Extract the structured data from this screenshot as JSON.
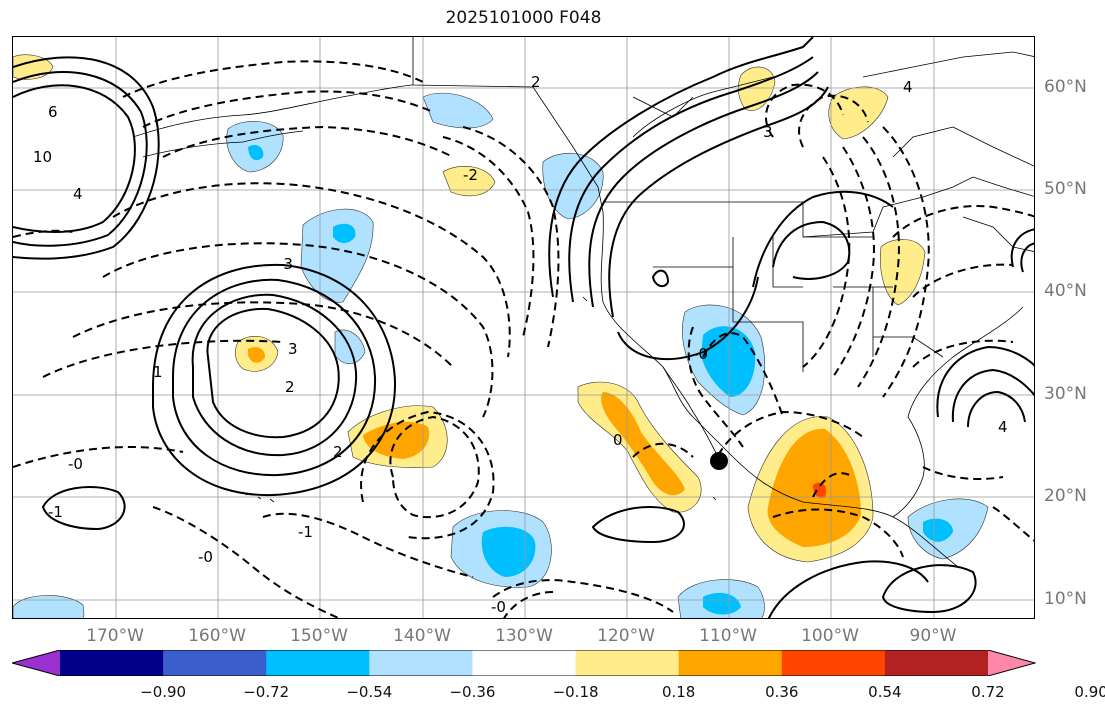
{
  "title": "2025101000 F048",
  "latitude_labels": [
    "60°N",
    "50°N",
    "40°N",
    "30°N",
    "20°N",
    "10°N"
  ],
  "longitude_labels": [
    "170°W",
    "160°W",
    "150°W",
    "140°W",
    "130°W",
    "120°W",
    "110°W",
    "100°W",
    "90°W"
  ],
  "colorbar": {
    "ticks": [
      "−0.90",
      "−0.72",
      "−0.54",
      "−0.36",
      "−0.18",
      "0.18",
      "0.36",
      "0.54",
      "0.72",
      "0.90"
    ],
    "colors": [
      "#9b30d0",
      "#00008b",
      "#3a5fcd",
      "#00bfff",
      "#b0e2ff",
      "#ffffff",
      "#ffec8b",
      "#ffa500",
      "#ff4500",
      "#b22222",
      "#ff88aa"
    ]
  },
  "contour_labels": [
    {
      "text": "-3"
    },
    {
      "text": "-2"
    },
    {
      "text": "-1"
    },
    {
      "text": "0"
    },
    {
      "text": "-0"
    },
    {
      "text": "1"
    },
    {
      "text": "2"
    },
    {
      "text": "3"
    },
    {
      "text": "4"
    },
    {
      "text": "6"
    },
    {
      "text": "10"
    }
  ],
  "map": {
    "projection": "plate-carree",
    "lon_range": [
      "180°W",
      "80°W"
    ],
    "lat_range": [
      "8°N",
      "65°N"
    ],
    "grid": true,
    "marker": "black-dot"
  }
}
